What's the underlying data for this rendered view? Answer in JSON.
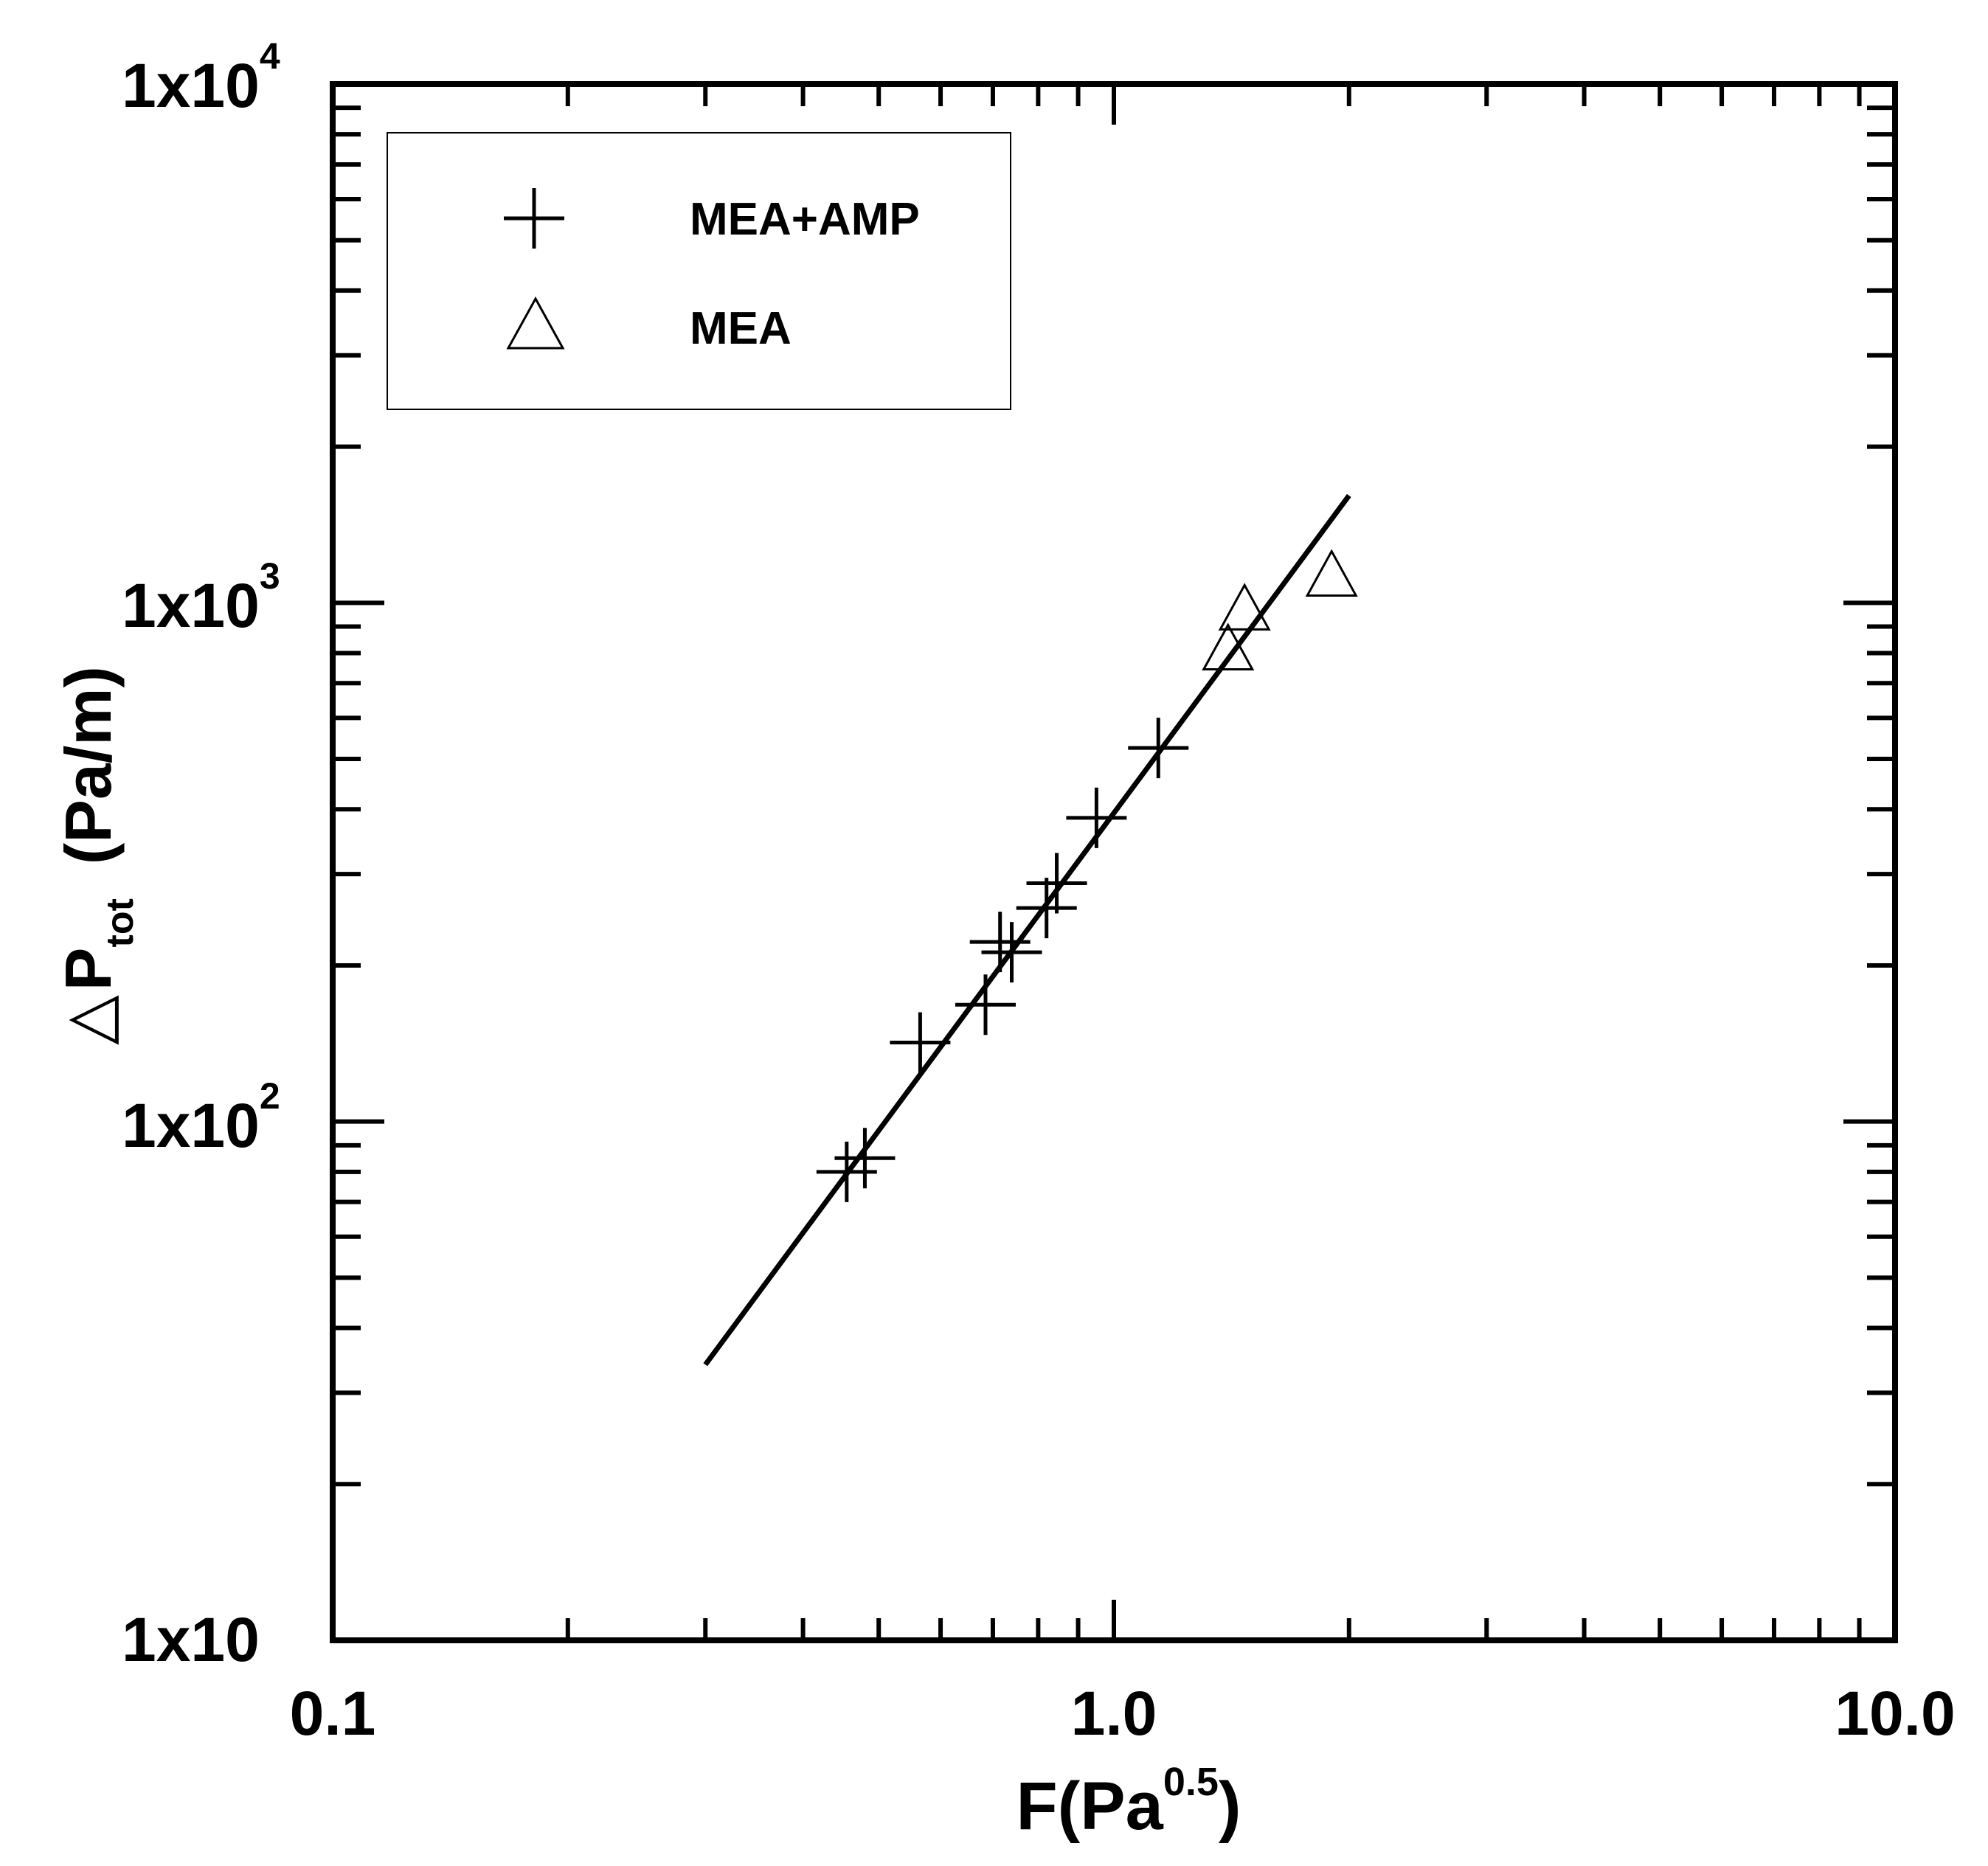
{
  "chart_data": {
    "type": "scatter",
    "title": "",
    "xscale": "log",
    "yscale": "log",
    "xlim": [
      0.1,
      10.0
    ],
    "ylim": [
      10,
      10000
    ],
    "x_ticks": [
      {
        "value": 0.1,
        "label": "0.1"
      },
      {
        "value": 1.0,
        "label": "1.0"
      },
      {
        "value": 10.0,
        "label": "10.0"
      }
    ],
    "y_ticks": [
      {
        "value": 10,
        "base": "1x10",
        "exp": ""
      },
      {
        "value": 100,
        "base": "1x10",
        "exp": "2"
      },
      {
        "value": 1000,
        "base": "1x10",
        "exp": "3"
      },
      {
        "value": 10000,
        "base": "1x10",
        "exp": "4"
      }
    ],
    "xlabel": {
      "main": "F(Pa",
      "sup": "0.5",
      "close": ")"
    },
    "ylabel": {
      "delta": "△",
      "main": "P",
      "sub": "tot",
      "units": "(Pa/m)"
    },
    "series": [
      {
        "name": "MEA+AMP",
        "marker": "plus",
        "points": [
          {
            "x": 0.455,
            "y": 80
          },
          {
            "x": 0.48,
            "y": 85
          },
          {
            "x": 0.565,
            "y": 142
          },
          {
            "x": 0.685,
            "y": 168
          },
          {
            "x": 0.715,
            "y": 222
          },
          {
            "x": 0.74,
            "y": 212
          },
          {
            "x": 0.82,
            "y": 258
          },
          {
            "x": 0.845,
            "y": 288
          },
          {
            "x": 0.95,
            "y": 385
          },
          {
            "x": 1.14,
            "y": 525
          }
        ]
      },
      {
        "name": "MEA",
        "marker": "triangle",
        "points": [
          {
            "x": 1.4,
            "y": 800
          },
          {
            "x": 1.47,
            "y": 955
          },
          {
            "x": 1.9,
            "y": 1110
          }
        ]
      }
    ],
    "fit_line": {
      "x": [
        0.3,
        2.0
      ],
      "y": [
        34,
        1610
      ]
    },
    "legend": {
      "position": "top-left"
    }
  }
}
